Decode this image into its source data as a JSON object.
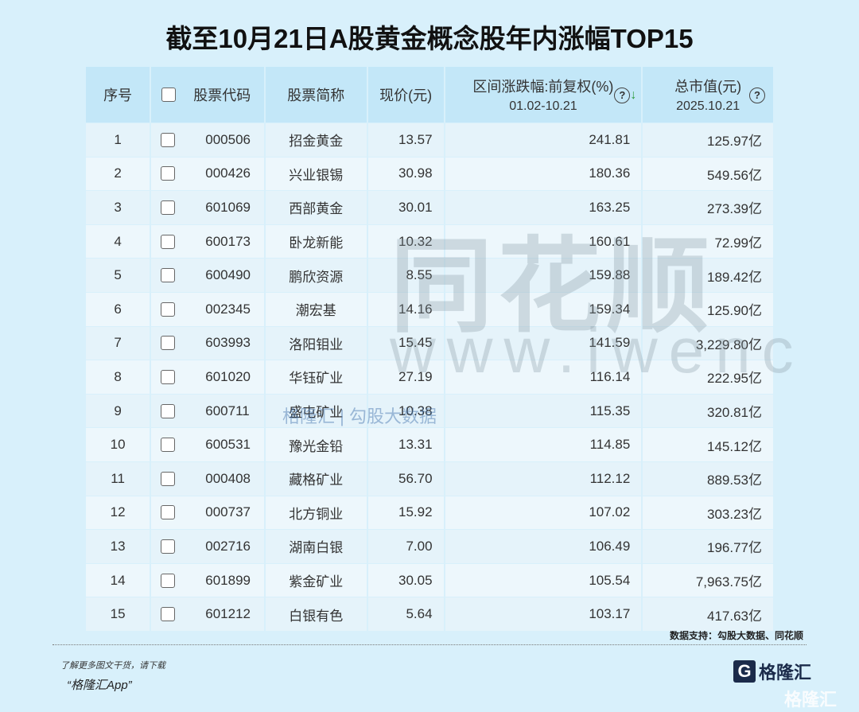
{
  "title": "截至10月21日A股黄金概念股年内涨幅TOP15",
  "headers": {
    "index": "序号",
    "code": "股票代码",
    "name": "股票简称",
    "price": "现价(元)",
    "change": "区间涨跌幅:前复权(%)",
    "change_period": "01.02-10.21",
    "cap": "总市值(元)",
    "cap_date": "2025.10.21",
    "help": "?",
    "sort": "↓"
  },
  "rows": [
    {
      "i": "1",
      "code": "000506",
      "name": "招金黄金",
      "price": "13.57",
      "chg": "241.81",
      "cap": "125.97亿"
    },
    {
      "i": "2",
      "code": "000426",
      "name": "兴业银锡",
      "price": "30.98",
      "chg": "180.36",
      "cap": "549.56亿"
    },
    {
      "i": "3",
      "code": "601069",
      "name": "西部黄金",
      "price": "30.01",
      "chg": "163.25",
      "cap": "273.39亿"
    },
    {
      "i": "4",
      "code": "600173",
      "name": "卧龙新能",
      "price": "10.32",
      "chg": "160.61",
      "cap": "72.99亿"
    },
    {
      "i": "5",
      "code": "600490",
      "name": "鹏欣资源",
      "price": "8.55",
      "chg": "159.88",
      "cap": "189.42亿"
    },
    {
      "i": "6",
      "code": "002345",
      "name": "潮宏基",
      "price": "14.16",
      "chg": "159.34",
      "cap": "125.90亿"
    },
    {
      "i": "7",
      "code": "603993",
      "name": "洛阳钼业",
      "price": "15.45",
      "chg": "141.59",
      "cap": "3,229.80亿"
    },
    {
      "i": "8",
      "code": "601020",
      "name": "华钰矿业",
      "price": "27.19",
      "chg": "116.14",
      "cap": "222.95亿"
    },
    {
      "i": "9",
      "code": "600711",
      "name": "盛屯矿业",
      "price": "10.38",
      "chg": "115.35",
      "cap": "320.81亿"
    },
    {
      "i": "10",
      "code": "600531",
      "name": "豫光金铅",
      "price": "13.31",
      "chg": "114.85",
      "cap": "145.12亿"
    },
    {
      "i": "11",
      "code": "000408",
      "name": "藏格矿业",
      "price": "56.70",
      "chg": "112.12",
      "cap": "889.53亿"
    },
    {
      "i": "12",
      "code": "000737",
      "name": "北方铜业",
      "price": "15.92",
      "chg": "107.02",
      "cap": "303.23亿"
    },
    {
      "i": "13",
      "code": "002716",
      "name": "湖南白银",
      "price": "7.00",
      "chg": "106.49",
      "cap": "196.77亿"
    },
    {
      "i": "14",
      "code": "601899",
      "name": "紫金矿业",
      "price": "30.05",
      "chg": "105.54",
      "cap": "7,963.75亿"
    },
    {
      "i": "15",
      "code": "601212",
      "name": "白银有色",
      "price": "5.64",
      "chg": "103.17",
      "cap": "417.63亿"
    }
  ],
  "watermarks": {
    "main": "同花顺",
    "url": "www.iwenc",
    "brand": "格隆汇 | 勾股大数据"
  },
  "footer": {
    "source": "数据支持：勾股大数据、同花顺",
    "promo_line1": "了解更多图文干货，请下载",
    "promo_line2": "“格隆汇App”",
    "logo_text": "格隆汇",
    "corner_logo": "格隆汇"
  },
  "colors": {
    "background": "#d8f0fb",
    "header": "#c3e7f8",
    "name": "#1f5bb8",
    "change": "#b2361f",
    "cap": "#2558b0"
  }
}
